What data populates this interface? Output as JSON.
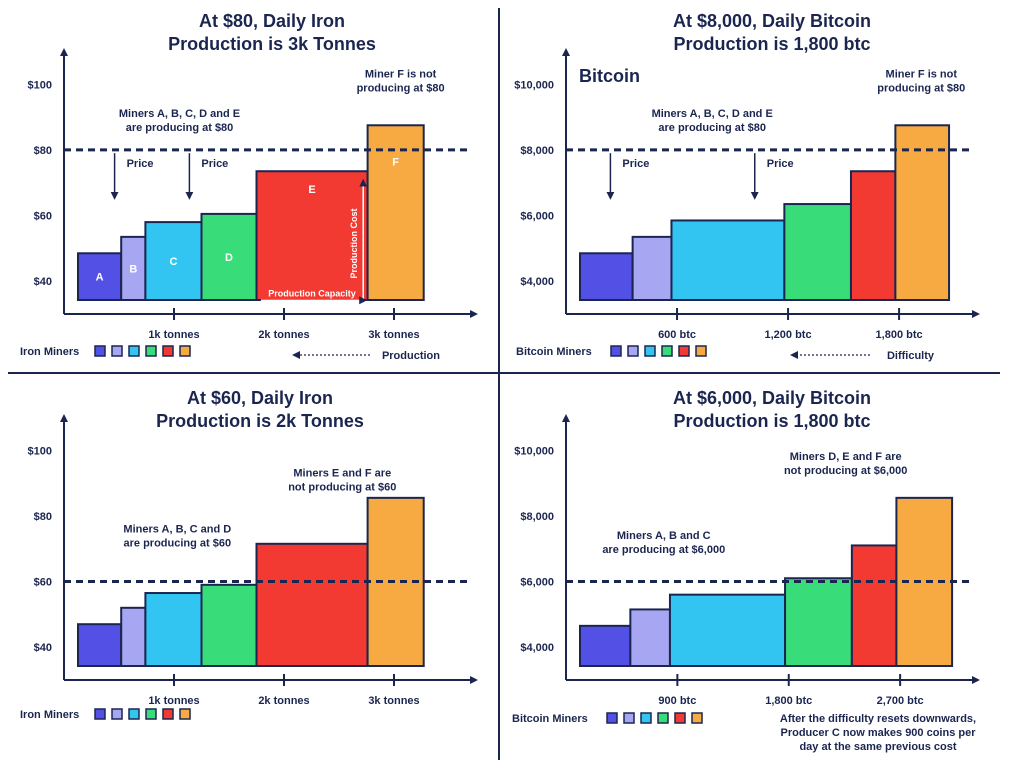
{
  "colors": {
    "A": "#5350e6",
    "B": "#a7a6f2",
    "C": "#32c5f2",
    "D": "#38dc79",
    "E": "#f23a33",
    "F": "#f7aa42",
    "ink": "#1b2650"
  },
  "chart_data": [
    {
      "type": "bar",
      "title": "At $80, Daily Iron Production is 3k Tonnes",
      "title_lines": [
        "At $80, Daily Iron",
        "Production is 3k Tonnes"
      ],
      "y_ticks": [
        {
          "value": 40,
          "label": "$40"
        },
        {
          "value": 60,
          "label": "$60"
        },
        {
          "value": 80,
          "label": "$80"
        },
        {
          "value": 100,
          "label": "$100"
        }
      ],
      "ylim": [
        30,
        108
      ],
      "x_ticks": [
        {
          "value": 1000,
          "label": "1k tonnes"
        },
        {
          "value": 2000,
          "label": "2k tonnes"
        },
        {
          "value": 3000,
          "label": "3k tonnes"
        }
      ],
      "xlim": [
        0,
        3600
      ],
      "price_line": 80,
      "bars": [
        {
          "miner": "A",
          "x0": -100,
          "x1": 520,
          "cost": 48.5,
          "label": "A"
        },
        {
          "miner": "B",
          "x0": 520,
          "x1": 740,
          "cost": 53.5,
          "label": "B"
        },
        {
          "miner": "C",
          "x0": 740,
          "x1": 1250,
          "cost": 58,
          "label": "C"
        },
        {
          "miner": "D",
          "x0": 1250,
          "x1": 1750,
          "cost": 60.5,
          "label": "D"
        },
        {
          "miner": "E",
          "x0": 1750,
          "x1": 2760,
          "cost": 73.5,
          "label": "E"
        },
        {
          "miner": "F",
          "x0": 2760,
          "x1": 3270,
          "cost": 87.5,
          "label": "F"
        }
      ],
      "annotations": [
        {
          "lines": [
            "Miners A, B, C, D and E",
            "are producing at $80"
          ],
          "x": 1050,
          "y": 90
        },
        {
          "lines": [
            "Miner F is not",
            "producing at $80"
          ],
          "x": 3060,
          "y": 102
        }
      ],
      "price_arrows": [
        {
          "x": 460,
          "y_from": 79,
          "y_to": 66,
          "label": "Price"
        },
        {
          "x": 1140,
          "y_from": 79,
          "y_to": 66,
          "label": "Price"
        }
      ],
      "production_cost": {
        "x": 2720,
        "from": 33,
        "to": 70,
        "label": "Production Cost"
      },
      "production_capacity": {
        "x0": 1790,
        "x1": 2720,
        "value": 36,
        "label": "Production Capacity"
      },
      "legend": {
        "label": "Iron Miners"
      },
      "footer": {
        "label": "Production"
      }
    },
    {
      "type": "bar",
      "title": "At $8,000, Daily Bitcoin Production is 1,800 btc",
      "title_lines": [
        "At $8,000, Daily Bitcoin",
        "Production is 1,800 btc"
      ],
      "subtitle": "Bitcoin",
      "y_ticks": [
        {
          "value": 4000,
          "label": "$4,000"
        },
        {
          "value": 6000,
          "label": "$6,000"
        },
        {
          "value": 8000,
          "label": "$8,000"
        },
        {
          "value": 10000,
          "label": "$10,000"
        }
      ],
      "ylim": [
        3000,
        10800
      ],
      "x_ticks": [
        {
          "value": 600,
          "label": "600 btc"
        },
        {
          "value": 1200,
          "label": "1,200 btc"
        },
        {
          "value": 1800,
          "label": "1,800 btc"
        }
      ],
      "xlim": [
        0,
        2140
      ],
      "price_line": 8000,
      "bars": [
        {
          "miner": "A",
          "x0": 60,
          "x1": 360,
          "cost": 4850,
          "label": ""
        },
        {
          "miner": "B",
          "x0": 360,
          "x1": 570,
          "cost": 5350,
          "label": ""
        },
        {
          "miner": "C",
          "x0": 570,
          "x1": 1180,
          "cost": 5850,
          "label": ""
        },
        {
          "miner": "D",
          "x0": 1180,
          "x1": 1540,
          "cost": 6350,
          "label": ""
        },
        {
          "miner": "E",
          "x0": 1540,
          "x1": 1780,
          "cost": 7350,
          "label": ""
        },
        {
          "miner": "F",
          "x0": 1780,
          "x1": 2070,
          "cost": 8750,
          "label": ""
        }
      ],
      "annotations": [
        {
          "lines": [
            "Miners A, B, C, D and E",
            "are producing at $80"
          ],
          "x": 790,
          "y": 9000
        },
        {
          "lines": [
            "Miner F is not",
            "producing at $80"
          ],
          "x": 1920,
          "y": 10200
        }
      ],
      "price_arrows": [
        {
          "x": 240,
          "y_from": 7900,
          "y_to": 6600,
          "label": "Price"
        },
        {
          "x": 1020,
          "y_from": 7900,
          "y_to": 6600,
          "label": "Price"
        }
      ],
      "legend": {
        "label": "Bitcoin Miners"
      },
      "footer": {
        "label": "Difficulty"
      }
    },
    {
      "type": "bar",
      "title": "At $60, Daily Iron Production is 2k Tonnes",
      "title_lines": [
        "At $60, Daily Iron",
        "Production is 2k Tonnes"
      ],
      "y_ticks": [
        {
          "value": 40,
          "label": "$40"
        },
        {
          "value": 60,
          "label": "$60"
        },
        {
          "value": 80,
          "label": "$80"
        },
        {
          "value": 100,
          "label": "$100"
        }
      ],
      "ylim": [
        30,
        108
      ],
      "x_ticks": [
        {
          "value": 1000,
          "label": "1k tonnes"
        },
        {
          "value": 2000,
          "label": "2k tonnes"
        },
        {
          "value": 3000,
          "label": "3k tonnes"
        }
      ],
      "xlim": [
        0,
        3600
      ],
      "price_line": 60,
      "bars": [
        {
          "miner": "A",
          "x0": -100,
          "x1": 520,
          "cost": 47,
          "label": ""
        },
        {
          "miner": "B",
          "x0": 520,
          "x1": 740,
          "cost": 52,
          "label": ""
        },
        {
          "miner": "C",
          "x0": 740,
          "x1": 1250,
          "cost": 56.5,
          "label": ""
        },
        {
          "miner": "D",
          "x0": 1250,
          "x1": 1750,
          "cost": 59,
          "label": ""
        },
        {
          "miner": "E",
          "x0": 1750,
          "x1": 2760,
          "cost": 71.5,
          "label": ""
        },
        {
          "miner": "F",
          "x0": 2760,
          "x1": 3270,
          "cost": 85.5,
          "label": ""
        }
      ],
      "annotations": [
        {
          "lines": [
            "Miners A, B, C and D",
            "are producing at $60"
          ],
          "x": 1030,
          "y": 75
        },
        {
          "lines": [
            "Miners E and F are",
            "not producing at $60"
          ],
          "x": 2530,
          "y": 92
        }
      ],
      "legend": {
        "label": "Iron Miners"
      }
    },
    {
      "type": "bar",
      "title": "At $6,000, Daily Bitcoin Production is 1,800 btc",
      "title_lines": [
        "At $6,000, Daily Bitcoin",
        "Production is 1,800 btc"
      ],
      "y_ticks": [
        {
          "value": 4000,
          "label": "$4,000"
        },
        {
          "value": 6000,
          "label": "$6,000"
        },
        {
          "value": 8000,
          "label": "$8,000"
        },
        {
          "value": 10000,
          "label": "$10,000"
        }
      ],
      "ylim": [
        3000,
        10800
      ],
      "x_ticks": [
        {
          "value": 900,
          "label": "900 btc"
        },
        {
          "value": 1800,
          "label": "1,800 btc"
        },
        {
          "value": 2700,
          "label": "2,700 btc"
        }
      ],
      "xlim": [
        0,
        3200
      ],
      "price_line": 6000,
      "bars": [
        {
          "miner": "A",
          "x0": 80,
          "x1": 520,
          "cost": 4650,
          "label": ""
        },
        {
          "miner": "B",
          "x0": 520,
          "x1": 840,
          "cost": 5150,
          "label": ""
        },
        {
          "miner": "C",
          "x0": 840,
          "x1": 1770,
          "cost": 5600,
          "label": ""
        },
        {
          "miner": "D",
          "x0": 1770,
          "x1": 2310,
          "cost": 6100,
          "label": ""
        },
        {
          "miner": "E",
          "x0": 2310,
          "x1": 2670,
          "cost": 7100,
          "label": ""
        },
        {
          "miner": "F",
          "x0": 2670,
          "x1": 3120,
          "cost": 8550,
          "label": ""
        }
      ],
      "annotations": [
        {
          "lines": [
            "Miners A, B and C",
            "are producing at $6,000"
          ],
          "x": 790,
          "y": 7300
        },
        {
          "lines": [
            "Miners D, E and F are",
            "not producing at $6,000"
          ],
          "x": 2260,
          "y": 9700
        }
      ],
      "legend": {
        "label": "Bitcoin Miners"
      },
      "footer_lines": [
        "After the difficulty resets downwards,",
        "Producer C now makes 900 coins per",
        "day at the same previous cost"
      ]
    }
  ]
}
